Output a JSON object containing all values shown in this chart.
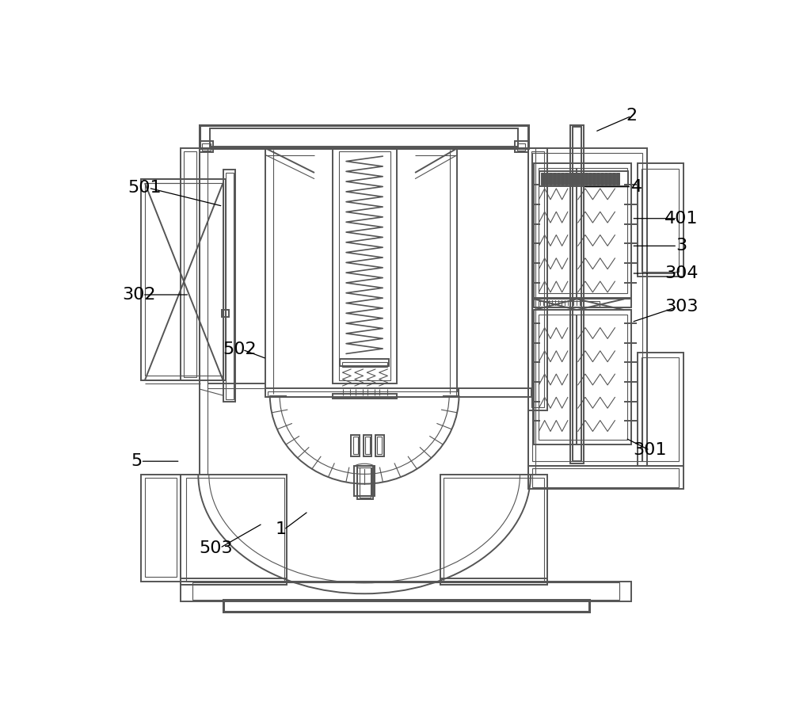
{
  "bg_color": "#ffffff",
  "lc": "#555555",
  "lw": 1.4,
  "tlw": 0.8,
  "thw": 2.2
}
